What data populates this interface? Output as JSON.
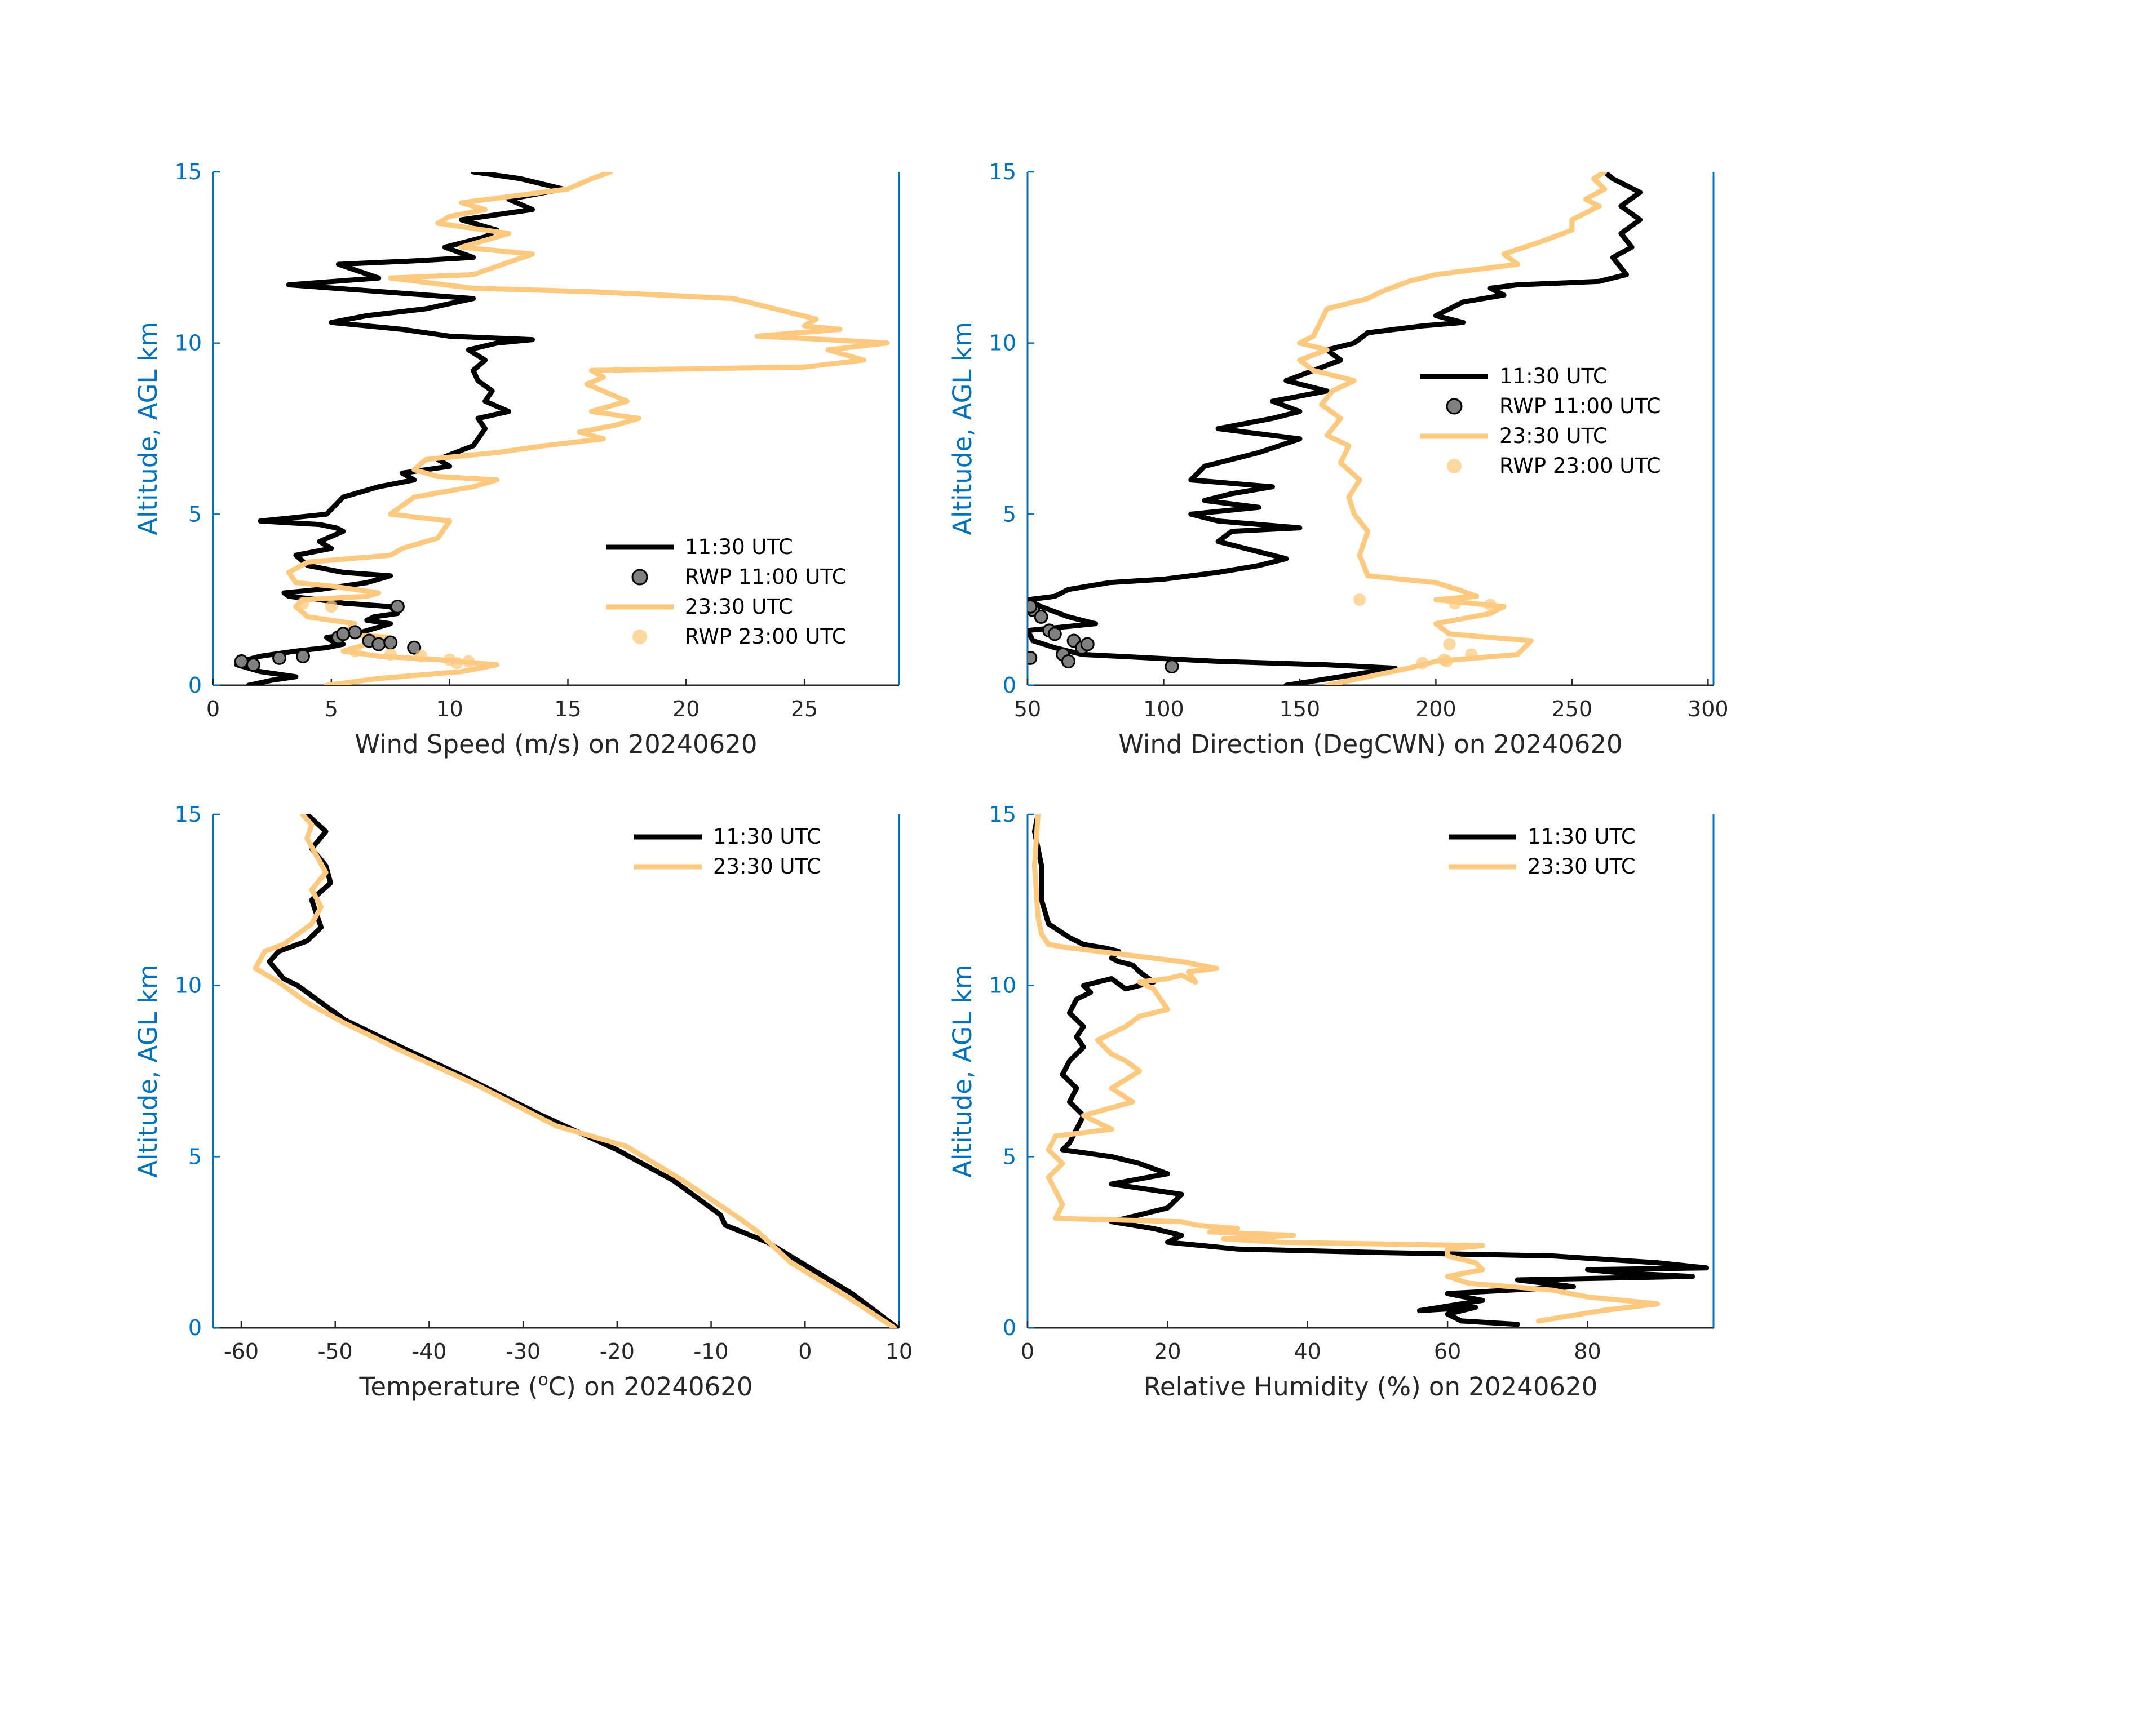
{
  "figure": {
    "date": "20240620"
  },
  "colors": {
    "black": "#000000",
    "orange": "#FDC97F",
    "axis_blue": "#0072BD",
    "marker_gray": "#808080"
  },
  "chart_data": [
    {
      "type": "line",
      "id": "wind-speed",
      "xlabel": "Wind Speed (m/s) on 20240620",
      "ylabel": "Altitude, AGL km",
      "xlim": [
        0,
        29
      ],
      "ylim": [
        0,
        15
      ],
      "xticks": [
        0,
        5,
        10,
        15,
        20,
        25
      ],
      "yticks": [
        0,
        5,
        10,
        15
      ],
      "legend": [
        "11:30 UTC",
        "RWP 11:00 UTC",
        "23:30 UTC",
        "RWP 23:00 UTC"
      ],
      "series": [
        {
          "name": "11:30 UTC",
          "kind": "line",
          "color": "#000000",
          "x": [
            1.5,
            2.5,
            3.5,
            2.0,
            1.0,
            1.2,
            2.0,
            3.5,
            4.8,
            5.5,
            5.0,
            4.8,
            6.0,
            7.0,
            7.5,
            6.5,
            6.8,
            7.8,
            7.5,
            5.5,
            4.5,
            3.2,
            3.0,
            4.5,
            6.5,
            7.5,
            5.5,
            4.0,
            3.5,
            5.0,
            4.5,
            5.5,
            5.2,
            4.5,
            2.0,
            4.8,
            5.5,
            7.0,
            8.5,
            8.0,
            10.0,
            9.5,
            11.0,
            11.5,
            11.2,
            12.5,
            11.5,
            11.8,
            11.2,
            11.0,
            11.5,
            10.8,
            12.0,
            13.5,
            10.0,
            8.0,
            5.0,
            6.5,
            9.0,
            11.0,
            3.2,
            7.0,
            5.3,
            8.5,
            11.0,
            9.8,
            11.5,
            12.0,
            10.5,
            13.5,
            12.5,
            14.8,
            13.0,
            11.0
          ],
          "y": [
            0.0,
            0.15,
            0.25,
            0.4,
            0.6,
            0.7,
            0.85,
            1.0,
            1.1,
            1.2,
            1.3,
            1.4,
            1.5,
            1.7,
            1.8,
            1.9,
            2.0,
            2.1,
            2.3,
            2.4,
            2.5,
            2.6,
            2.7,
            2.8,
            3.0,
            3.2,
            3.3,
            3.5,
            3.8,
            4.0,
            4.2,
            4.5,
            4.6,
            4.7,
            4.8,
            5.0,
            5.5,
            5.8,
            6.0,
            6.2,
            6.4,
            6.6,
            7.0,
            7.5,
            7.8,
            8.0,
            8.3,
            8.6,
            8.9,
            9.2,
            9.5,
            9.8,
            10.0,
            10.1,
            10.2,
            10.4,
            10.6,
            10.8,
            11.0,
            11.3,
            11.7,
            11.9,
            12.3,
            12.4,
            12.5,
            12.8,
            13.1,
            13.3,
            13.6,
            13.9,
            14.2,
            14.5,
            14.8,
            15.0
          ]
        },
        {
          "name": "RWP 11:00 UTC",
          "kind": "scatter",
          "color": "#808080",
          "x": [
            1.2,
            1.7,
            2.8,
            3.8,
            5.3,
            6.0,
            5.5,
            6.6,
            7.8,
            8.5,
            7.0,
            7.5
          ],
          "y": [
            0.7,
            0.6,
            0.8,
            0.85,
            1.4,
            1.55,
            1.5,
            1.3,
            2.3,
            1.1,
            1.2,
            1.25
          ]
        },
        {
          "name": "23:30 UTC",
          "kind": "line",
          "color": "#FDC97F",
          "x": [
            4.8,
            7.0,
            10.5,
            12.0,
            9.5,
            7.0,
            5.5,
            6.5,
            7.5,
            5.5,
            6.0,
            4.0,
            3.5,
            3.8,
            6.5,
            7.0,
            5.0,
            3.5,
            3.2,
            4.0,
            7.5,
            8.0,
            9.5,
            10.0,
            7.5,
            8.5,
            11.0,
            12.0,
            9.5,
            8.5,
            9.0,
            12.0,
            14.0,
            16.5,
            15.5,
            17.0,
            18.0,
            16.0,
            17.5,
            15.8,
            16.5,
            16.0,
            25.0,
            27.5,
            26.0,
            28.5,
            26.0,
            23.0,
            26.5,
            25.0,
            25.5,
            22.0,
            16.0,
            11.0,
            7.5,
            11.0,
            13.5,
            10.5,
            11.5,
            12.5,
            10.5,
            9.5,
            10.0,
            11.5,
            10.5,
            15.0,
            16.0,
            16.8
          ],
          "y": [
            0.0,
            0.2,
            0.4,
            0.6,
            0.75,
            0.85,
            1.0,
            1.2,
            1.4,
            1.5,
            1.8,
            2.0,
            2.3,
            2.5,
            2.6,
            2.7,
            2.9,
            3.0,
            3.3,
            3.6,
            3.8,
            4.0,
            4.3,
            4.8,
            5.0,
            5.5,
            5.8,
            6.0,
            6.1,
            6.3,
            6.6,
            6.8,
            7.0,
            7.2,
            7.4,
            7.6,
            7.8,
            8.0,
            8.3,
            8.8,
            9.0,
            9.2,
            9.3,
            9.5,
            9.8,
            10.0,
            10.1,
            10.2,
            10.4,
            10.5,
            10.7,
            11.3,
            11.5,
            11.6,
            11.9,
            12.0,
            12.6,
            12.8,
            13.0,
            13.2,
            13.4,
            13.5,
            13.7,
            13.9,
            14.1,
            14.5,
            14.8,
            15.0
          ]
        },
        {
          "name": "RWP 23:00 UTC",
          "kind": "scatter",
          "color": "#FDC97F",
          "x": [
            10.8,
            10.0,
            8.8,
            7.5,
            6.0,
            3.8,
            5.0,
            10.3
          ],
          "y": [
            0.7,
            0.75,
            0.85,
            0.9,
            1.0,
            2.4,
            2.3,
            0.65
          ]
        }
      ]
    },
    {
      "type": "line",
      "id": "wind-direction",
      "xlabel": "Wind Direction (DegCWN) on 20240620",
      "ylabel": "Altitude, AGL km",
      "xlim": [
        50,
        302
      ],
      "ylim": [
        0,
        15
      ],
      "xticks": [
        50,
        100,
        150,
        200,
        250,
        300
      ],
      "yticks": [
        0,
        5,
        10,
        15
      ],
      "legend": [
        "11:30 UTC",
        "RWP 11:00 UTC",
        "23:30 UTC",
        "RWP 23:00 UTC"
      ],
      "series": [
        {
          "name": "11:30 UTC",
          "kind": "line",
          "color": "#000000",
          "x": [
            145,
            185,
            160,
            120,
            70,
            60,
            52,
            50,
            75,
            65,
            55,
            50,
            60,
            65,
            80,
            100,
            120,
            135,
            145,
            130,
            120,
            125,
            150,
            120,
            110,
            135,
            115,
            125,
            140,
            110,
            115,
            135,
            150,
            120,
            140,
            150,
            140,
            160,
            145,
            155,
            165,
            160,
            170,
            175,
            195,
            210,
            200,
            210,
            225,
            220,
            230,
            260,
            270,
            265,
            272,
            268,
            275,
            268,
            275,
            265,
            262
          ],
          "y": [
            0.0,
            0.5,
            0.6,
            0.7,
            0.9,
            1.1,
            1.3,
            1.6,
            1.8,
            2.0,
            2.3,
            2.5,
            2.6,
            2.8,
            3.0,
            3.1,
            3.3,
            3.5,
            3.7,
            4.0,
            4.2,
            4.5,
            4.6,
            4.8,
            5.0,
            5.2,
            5.4,
            5.6,
            5.8,
            6.0,
            6.4,
            6.8,
            7.2,
            7.5,
            7.8,
            8.0,
            8.3,
            8.6,
            8.9,
            9.2,
            9.5,
            9.8,
            10.0,
            10.3,
            10.5,
            10.6,
            10.8,
            11.2,
            11.4,
            11.6,
            11.7,
            11.8,
            12.0,
            12.5,
            12.8,
            13.2,
            13.6,
            14.0,
            14.4,
            14.8,
            15.0
          ]
        },
        {
          "name": "RWP 11:00 UTC",
          "kind": "scatter",
          "color": "#808080",
          "x": [
            51,
            52,
            55,
            58,
            60,
            63,
            65,
            67,
            70,
            72,
            103,
            51
          ],
          "y": [
            0.8,
            2.2,
            2.0,
            1.6,
            1.5,
            0.9,
            0.7,
            1.3,
            1.1,
            1.2,
            0.55,
            2.3
          ]
        },
        {
          "name": "23:30 UTC",
          "kind": "line",
          "color": "#FDC97F",
          "x": [
            160,
            190,
            200,
            230,
            235,
            205,
            200,
            220,
            225,
            200,
            215,
            208,
            200,
            175,
            172,
            175,
            170,
            168,
            172,
            165,
            168,
            160,
            165,
            158,
            162,
            170,
            165,
            155,
            150,
            160,
            150,
            155,
            160,
            175,
            180,
            190,
            200,
            230,
            225,
            240,
            250,
            250,
            260,
            255,
            262,
            258,
            262
          ],
          "y": [
            0.0,
            0.5,
            0.7,
            0.9,
            1.3,
            1.5,
            1.8,
            2.1,
            2.3,
            2.5,
            2.6,
            2.8,
            3.0,
            3.2,
            3.8,
            4.5,
            5.0,
            5.5,
            6.0,
            6.5,
            7.0,
            7.3,
            7.8,
            8.2,
            8.6,
            8.9,
            9.0,
            9.2,
            9.5,
            9.8,
            10.0,
            10.2,
            11.0,
            11.3,
            11.5,
            11.8,
            12.0,
            12.3,
            12.6,
            13.0,
            13.3,
            13.6,
            14.0,
            14.2,
            14.5,
            14.8,
            15.0
          ]
        },
        {
          "name": "RWP 23:00 UTC",
          "kind": "scatter",
          "color": "#FDC97F",
          "x": [
            172,
            207,
            220,
            203,
            213,
            195,
            204,
            205
          ],
          "y": [
            2.5,
            2.4,
            2.35,
            0.75,
            0.9,
            0.65,
            0.7,
            1.2
          ]
        }
      ]
    },
    {
      "type": "line",
      "id": "temperature",
      "xlabel": "Temperature (",
      "xlabel_sup": "o",
      "xlabel_tail": "C) on 20240620",
      "ylabel": "Altitude, AGL km",
      "xlim": [
        -63,
        10
      ],
      "ylim": [
        0,
        15
      ],
      "xticks": [
        -60,
        -50,
        -40,
        -30,
        -20,
        -10,
        0,
        10
      ],
      "yticks": [
        0,
        5,
        10,
        15
      ],
      "legend": [
        "11:30 UTC",
        "23:30 UTC"
      ],
      "series": [
        {
          "name": "11:30 UTC",
          "kind": "line",
          "color": "#000000",
          "x": [
            9.8,
            5.0,
            -1.0,
            -4.0,
            -8.5,
            -9.0,
            -14.0,
            -20.0,
            -28.0,
            -36.0,
            -43.0,
            -49.0,
            -52.0,
            -54.0,
            -55.5,
            -57.0,
            -56.0,
            -53.0,
            -51.5,
            -52.5,
            -50.5,
            -51.0,
            -52.5,
            -51.0,
            -53.0
          ],
          "y": [
            0.0,
            1.0,
            2.0,
            2.5,
            3.0,
            3.3,
            4.3,
            5.2,
            6.2,
            7.3,
            8.2,
            9.0,
            9.6,
            10.0,
            10.2,
            10.7,
            11.0,
            11.3,
            11.7,
            12.5,
            13.0,
            13.5,
            14.0,
            14.5,
            15.0
          ]
        },
        {
          "name": "23:30 UTC",
          "kind": "line",
          "color": "#FDC97F",
          "x": [
            9.5,
            4.5,
            -1.5,
            -5.0,
            -7.0,
            -13.0,
            -19.0,
            -26.5,
            -35.0,
            -43.0,
            -49.0,
            -53.0,
            -56.0,
            -58.5,
            -57.5,
            -55.5,
            -54.0,
            -52.5,
            -51.5,
            -52.5,
            -51.0,
            -52.0,
            -53.0,
            -52.5,
            -53.5
          ],
          "y": [
            0.0,
            0.9,
            1.9,
            2.8,
            3.2,
            4.3,
            5.3,
            5.9,
            7.1,
            8.1,
            8.9,
            9.5,
            10.1,
            10.5,
            11.0,
            11.2,
            11.5,
            11.8,
            12.3,
            12.8,
            13.3,
            13.8,
            14.3,
            14.7,
            15.0
          ]
        }
      ]
    },
    {
      "type": "line",
      "id": "relative-humidity",
      "xlabel": "Relative Humidity (%) on 20240620",
      "ylabel": "Altitude, AGL km",
      "xlim": [
        0,
        98
      ],
      "ylim": [
        0,
        15
      ],
      "xticks": [
        0,
        20,
        40,
        60,
        80
      ],
      "yticks": [
        0,
        5,
        10,
        15
      ],
      "legend": [
        "11:30 UTC",
        "23:30 UTC"
      ],
      "series": [
        {
          "name": "11:30 UTC",
          "kind": "line",
          "color": "#000000",
          "x": [
            70,
            62,
            60,
            64,
            56,
            65,
            60,
            78,
            70,
            95,
            85,
            80,
            97,
            90,
            75,
            50,
            30,
            20,
            22,
            18,
            12,
            20,
            22,
            12,
            20,
            16,
            12,
            5,
            6,
            7,
            8,
            6,
            7,
            5,
            6,
            8,
            7,
            8,
            6,
            7,
            9,
            8,
            12,
            14,
            18,
            16,
            15,
            13,
            12,
            13,
            11,
            8,
            6,
            3,
            2,
            2,
            1,
            1.5
          ],
          "y": [
            0.1,
            0.2,
            0.4,
            0.6,
            0.5,
            0.8,
            1.0,
            1.2,
            1.4,
            1.5,
            1.6,
            1.7,
            1.75,
            1.9,
            2.1,
            2.2,
            2.3,
            2.5,
            2.7,
            2.9,
            3.1,
            3.5,
            3.9,
            4.2,
            4.5,
            4.8,
            5.0,
            5.2,
            5.4,
            5.8,
            6.2,
            6.6,
            7.0,
            7.4,
            7.8,
            8.2,
            8.5,
            8.8,
            9.2,
            9.6,
            9.8,
            10.0,
            10.2,
            9.9,
            10.1,
            10.4,
            10.6,
            10.7,
            10.8,
            11.0,
            11.1,
            11.2,
            11.4,
            11.8,
            12.5,
            13.5,
            14.5,
            15.0
          ]
        },
        {
          "name": "23:30 UTC",
          "kind": "line",
          "color": "#FDC97F",
          "x": [
            73,
            82,
            90,
            80,
            75,
            63,
            60,
            65,
            64,
            60,
            60,
            65,
            36,
            28,
            38,
            26,
            30,
            24,
            22,
            4,
            5,
            4,
            3,
            5,
            3,
            4,
            12,
            8,
            15,
            12,
            16,
            14,
            12,
            10,
            14,
            16,
            20,
            19,
            18,
            16,
            20,
            22,
            24,
            23,
            27,
            22,
            18,
            14,
            10,
            6,
            3,
            2,
            1.5,
            1,
            1.5
          ],
          "y": [
            0.2,
            0.5,
            0.7,
            0.9,
            1.1,
            1.3,
            1.5,
            1.7,
            1.9,
            2.1,
            2.3,
            2.4,
            2.5,
            2.6,
            2.7,
            2.8,
            2.9,
            3.0,
            3.1,
            3.2,
            3.6,
            4.0,
            4.4,
            4.8,
            5.2,
            5.6,
            5.8,
            6.2,
            6.6,
            7.0,
            7.5,
            7.8,
            8.0,
            8.4,
            8.8,
            9.1,
            9.3,
            9.6,
            9.9,
            10.1,
            10.2,
            10.3,
            10.1,
            10.4,
            10.5,
            10.7,
            10.8,
            10.9,
            11.0,
            11.1,
            11.2,
            11.5,
            12.0,
            13.5,
            15.0
          ]
        }
      ]
    }
  ]
}
